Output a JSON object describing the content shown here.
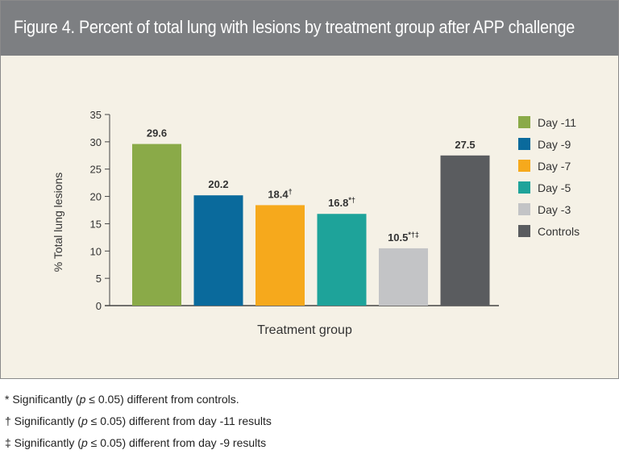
{
  "figure": {
    "title": "Figure 4. Percent of total lung with lesions by treatment group after APP challenge"
  },
  "chart_data": {
    "type": "bar",
    "title": "",
    "xlabel": "Treatment group",
    "ylabel": "% Total lung lesions",
    "ylim": [
      0,
      35
    ],
    "yticks": [
      0,
      5,
      10,
      15,
      20,
      25,
      30,
      35
    ],
    "grid": false,
    "legend_position": "right",
    "categories": [
      "Day -11",
      "Day -9",
      "Day -7",
      "Day -5",
      "Day -3",
      "Controls"
    ],
    "values": [
      29.6,
      20.2,
      18.4,
      16.8,
      10.5,
      27.5
    ],
    "data_labels": [
      "29.6",
      "20.2",
      "18.4",
      "16.8",
      "10.5",
      "27.5"
    ],
    "label_marks": [
      "",
      "",
      "†",
      "*†",
      "*†‡",
      ""
    ],
    "colors": [
      "#8aaa48",
      "#0a6a9c",
      "#f6a91c",
      "#1ea39a",
      "#c3c4c6",
      "#5a5c5f"
    ],
    "legend": [
      "Day -11",
      "Day -9",
      "Day -7",
      "Day -5",
      "Day -3",
      "Controls"
    ]
  },
  "footnotes": [
    {
      "before": "* Significantly (",
      "p": "p",
      "after": " ≤ 0.05) different from controls."
    },
    {
      "before": "† Significantly (",
      "p": "p",
      "after": " ≤ 0.05) different from day -11 results"
    },
    {
      "before": "‡ Significantly (",
      "p": "p",
      "after": " ≤ 0.05) different from day -9 results"
    }
  ]
}
